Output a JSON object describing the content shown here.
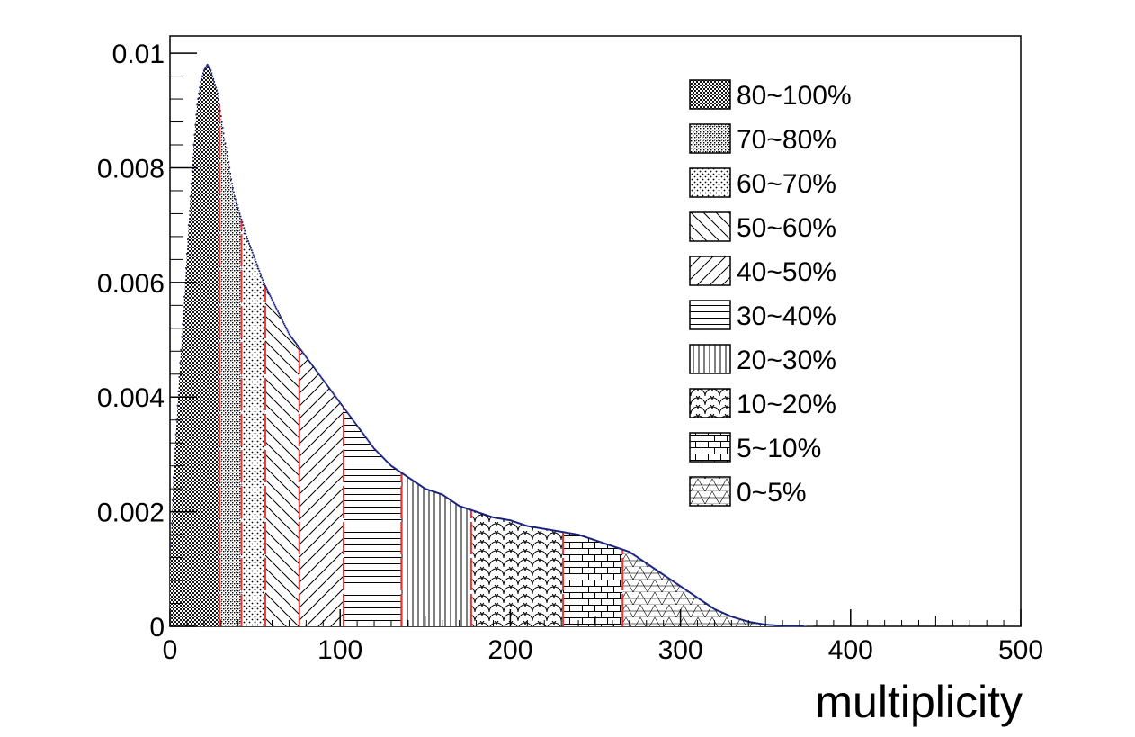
{
  "chart_data": {
    "type": "area",
    "title": "",
    "xlabel": "multiplicity",
    "ylabel": "",
    "xlim": [
      0,
      500
    ],
    "ylim": [
      0,
      0.0103
    ],
    "x_ticks": [
      0,
      100,
      200,
      300,
      400,
      500
    ],
    "x_tick_labels": [
      "0",
      "100",
      "200",
      "300",
      "400",
      "500"
    ],
    "y_ticks": [
      0,
      0.002,
      0.004,
      0.006,
      0.008,
      0.01
    ],
    "y_tick_labels": [
      "0",
      "0.002",
      "0.004",
      "0.006",
      "0.008",
      "0.01"
    ],
    "grid": false,
    "legend_position": "top-right",
    "distribution": {
      "x": [
        0,
        2,
        4,
        6,
        8,
        10,
        12,
        14,
        16,
        18,
        20,
        22,
        24,
        26,
        28,
        30,
        32,
        34,
        36,
        38,
        40,
        42,
        45,
        50,
        55,
        60,
        65,
        70,
        75,
        80,
        85,
        90,
        95,
        100,
        110,
        120,
        130,
        140,
        150,
        160,
        170,
        180,
        190,
        200,
        210,
        220,
        230,
        240,
        250,
        260,
        270,
        280,
        290,
        300,
        310,
        320,
        330,
        340,
        350,
        360,
        370,
        380,
        400,
        420,
        450,
        500
      ],
      "y": [
        0.001,
        0.0026,
        0.0036,
        0.0046,
        0.0055,
        0.0065,
        0.0075,
        0.0084,
        0.0091,
        0.0095,
        0.0097,
        0.0098,
        0.0097,
        0.0095,
        0.0093,
        0.0089,
        0.0085,
        0.0082,
        0.0078,
        0.0075,
        0.0073,
        0.0071,
        0.0068,
        0.0064,
        0.006,
        0.0057,
        0.0054,
        0.0051,
        0.0049,
        0.0047,
        0.0045,
        0.0043,
        0.0041,
        0.0039,
        0.0035,
        0.0031,
        0.0028,
        0.0026,
        0.0024,
        0.0023,
        0.0021,
        0.002,
        0.0019,
        0.00185,
        0.00175,
        0.0017,
        0.00165,
        0.0016,
        0.0015,
        0.0014,
        0.0013,
        0.0011,
        0.0009,
        0.0007,
        0.0005,
        0.0003,
        0.00017,
        8e-05,
        3e-05,
        1e-05,
        5e-06,
        0,
        0,
        0,
        0,
        0
      ]
    },
    "class_boundaries": [
      0,
      29,
      42,
      56,
      76,
      102,
      136,
      177,
      231,
      266,
      500
    ],
    "series": [
      {
        "name": "80~100%",
        "pattern": "dense-dots",
        "range": [
          0,
          29
        ]
      },
      {
        "name": "70~80%",
        "pattern": "fine-mesh",
        "range": [
          29,
          42
        ]
      },
      {
        "name": "60~70%",
        "pattern": "sparse-dots",
        "range": [
          42,
          56
        ]
      },
      {
        "name": "50~60%",
        "pattern": "back-diagonal",
        "range": [
          56,
          76
        ]
      },
      {
        "name": "40~50%",
        "pattern": "forward-diagonal",
        "range": [
          76,
          102
        ]
      },
      {
        "name": "30~40%",
        "pattern": "horizontal-lines",
        "range": [
          102,
          136
        ]
      },
      {
        "name": "20~30%",
        "pattern": "vertical-lines",
        "range": [
          136,
          177
        ]
      },
      {
        "name": "10~20%",
        "pattern": "scales",
        "range": [
          177,
          231
        ]
      },
      {
        "name": "5~10%",
        "pattern": "brick-grid",
        "range": [
          231,
          266
        ]
      },
      {
        "name": "0~5%",
        "pattern": "triangles",
        "range": [
          266,
          500
        ]
      }
    ],
    "colors": {
      "outline": "#000000",
      "data_points": "#1a237e",
      "boundary_lines": "#e53935"
    }
  }
}
